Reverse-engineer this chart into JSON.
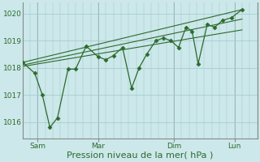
{
  "bg_color": "#cce8ea",
  "plot_bg_color": "#cce8ea",
  "grid_color": "#a0c8cc",
  "line_color": "#2d6a2d",
  "marker_color": "#2d6a2d",
  "xlabel": "Pression niveau de la mer( hPa )",
  "xlabel_fontsize": 8,
  "ylim": [
    1015.4,
    1020.4
  ],
  "yticks": [
    1016,
    1017,
    1018,
    1019,
    1020
  ],
  "ytick_fontsize": 6.5,
  "day_labels": [
    "Sam",
    "Mar",
    "Dim",
    "Lun"
  ],
  "day_positions": [
    1,
    5,
    10,
    14
  ],
  "xlim": [
    0,
    15.5
  ],
  "series": [
    [
      0.0,
      1018.2
    ],
    [
      0.8,
      1017.8
    ],
    [
      1.3,
      1017.0
    ],
    [
      1.8,
      1015.8
    ],
    [
      2.3,
      1016.15
    ],
    [
      3.0,
      1017.95
    ],
    [
      3.5,
      1017.95
    ],
    [
      4.2,
      1018.8
    ],
    [
      5.0,
      1018.4
    ],
    [
      5.5,
      1018.3
    ],
    [
      6.0,
      1018.45
    ],
    [
      6.6,
      1018.75
    ],
    [
      7.2,
      1017.25
    ],
    [
      7.7,
      1018.0
    ],
    [
      8.2,
      1018.5
    ],
    [
      8.8,
      1019.0
    ],
    [
      9.3,
      1019.1
    ],
    [
      9.8,
      1019.0
    ],
    [
      10.3,
      1018.75
    ],
    [
      10.8,
      1019.5
    ],
    [
      11.2,
      1019.35
    ],
    [
      11.6,
      1018.15
    ],
    [
      12.2,
      1019.6
    ],
    [
      12.7,
      1019.5
    ],
    [
      13.2,
      1019.75
    ],
    [
      13.8,
      1019.85
    ],
    [
      14.5,
      1020.15
    ]
  ],
  "trend_lines": [
    [
      [
        0.0,
        1018.2
      ],
      [
        14.5,
        1020.15
      ]
    ],
    [
      [
        0.0,
        1018.1
      ],
      [
        14.5,
        1019.8
      ]
    ],
    [
      [
        0.0,
        1018.05
      ],
      [
        14.5,
        1019.4
      ]
    ]
  ],
  "vline_positions": [
    1,
    5,
    10,
    14
  ],
  "vline_color": "#888888",
  "spine_color": "#888888"
}
